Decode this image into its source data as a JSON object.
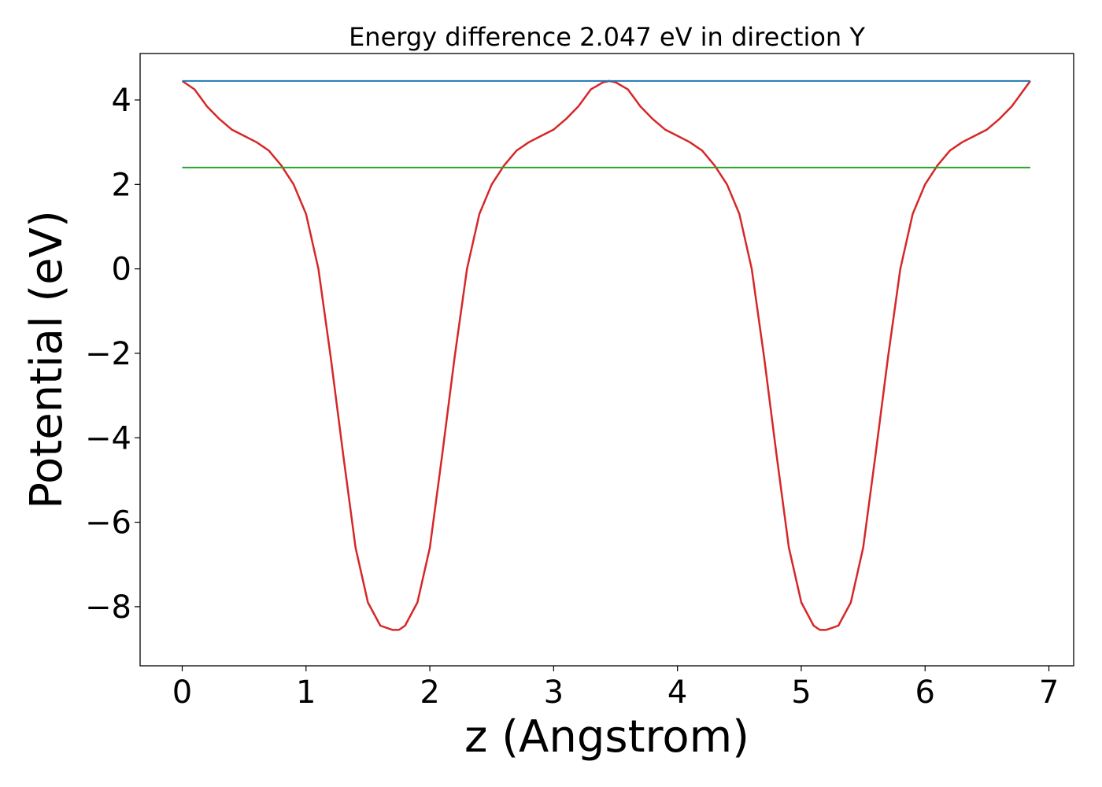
{
  "chart_data": {
    "type": "line",
    "title": "Energy difference 2.047 eV in direction Y",
    "xlabel": "z (Angstrom)",
    "ylabel": "Potential (eV)",
    "xlim": [
      -0.34,
      7.2
    ],
    "ylim": [
      -9.4,
      5.1
    ],
    "xticks": [
      0,
      1,
      2,
      3,
      4,
      5,
      6,
      7
    ],
    "xtick_labels": [
      "0",
      "1",
      "2",
      "3",
      "4",
      "5",
      "6",
      "7"
    ],
    "yticks": [
      -8,
      -6,
      -4,
      -2,
      0,
      2,
      4
    ],
    "ytick_labels": [
      "−8",
      "−6",
      "−4",
      "−2",
      "0",
      "2",
      "4"
    ],
    "grid": false,
    "legend": "none",
    "series": [
      {
        "color": "#d62728",
        "x": [
          0.0,
          0.1,
          0.2,
          0.3,
          0.4,
          0.5,
          0.6,
          0.7,
          0.8,
          0.9,
          1.0,
          1.1,
          1.2,
          1.3,
          1.4,
          1.5,
          1.6,
          1.7,
          1.75,
          1.8,
          1.9,
          2.0,
          2.1,
          2.2,
          2.3,
          2.4,
          2.5,
          2.6,
          2.7,
          2.8,
          2.9,
          3.0,
          3.1,
          3.2,
          3.3,
          3.4,
          3.45,
          3.5,
          3.6,
          3.7,
          3.8,
          3.9,
          4.0,
          4.1,
          4.2,
          4.3,
          4.4,
          4.5,
          4.6,
          4.7,
          4.8,
          4.9,
          5.0,
          5.1,
          5.15,
          5.2,
          5.3,
          5.4,
          5.5,
          5.6,
          5.7,
          5.8,
          5.9,
          6.0,
          6.1,
          6.2,
          6.3,
          6.4,
          6.5,
          6.6,
          6.7,
          6.8,
          6.85
        ],
        "values": [
          4.45,
          4.25,
          3.85,
          3.55,
          3.3,
          3.15,
          3.0,
          2.8,
          2.45,
          2.0,
          1.3,
          0.0,
          -2.1,
          -4.4,
          -6.6,
          -7.9,
          -8.45,
          -8.55,
          -8.55,
          -8.45,
          -7.9,
          -6.6,
          -4.4,
          -2.1,
          0.0,
          1.3,
          2.0,
          2.45,
          2.8,
          3.0,
          3.15,
          3.3,
          3.55,
          3.85,
          4.25,
          4.42,
          4.45,
          4.42,
          4.25,
          3.85,
          3.55,
          3.3,
          3.15,
          3.0,
          2.8,
          2.45,
          2.0,
          1.3,
          0.0,
          -2.1,
          -4.4,
          -6.6,
          -7.9,
          -8.45,
          -8.55,
          -8.55,
          -8.45,
          -7.9,
          -6.6,
          -4.4,
          -2.1,
          0.0,
          1.3,
          2.0,
          2.45,
          2.8,
          3.0,
          3.15,
          3.3,
          3.55,
          3.85,
          4.25,
          4.45
        ]
      },
      {
        "color": "#1f77b4",
        "x": [
          0.0,
          6.85
        ],
        "values": [
          4.45,
          4.45
        ]
      },
      {
        "color": "#2ca02c",
        "x": [
          0.0,
          6.85
        ],
        "values": [
          2.4,
          2.4
        ]
      }
    ]
  }
}
